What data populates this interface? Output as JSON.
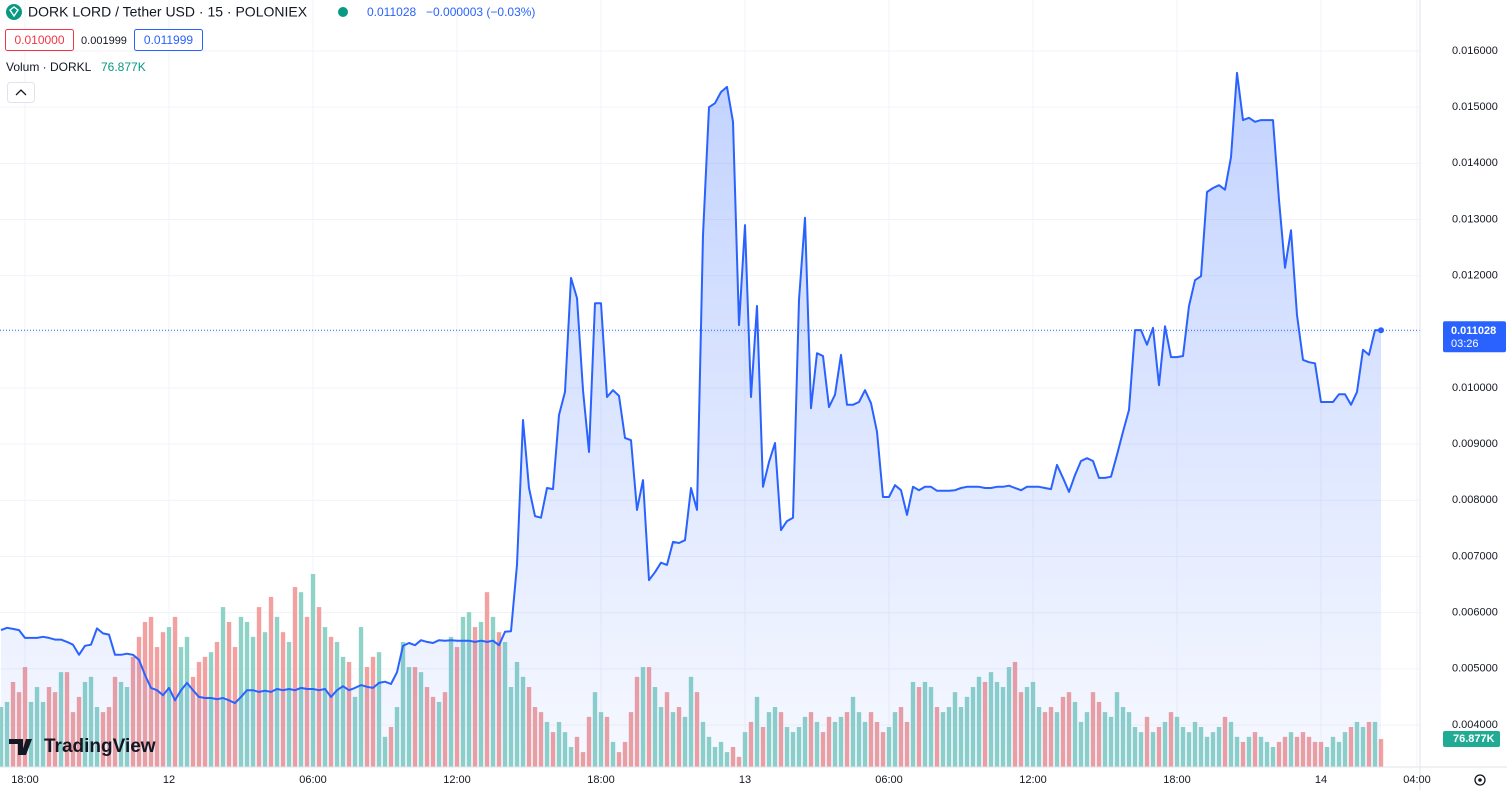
{
  "chart_data": {
    "type": "line",
    "title": "DORK LORD / Tether USD · 15 · POLONIEX",
    "change": "−0.000003 (−0.03%)",
    "price_boxes": [
      "0.010000",
      "0.001999",
      "0.011999"
    ],
    "countdown": "03:26",
    "brand": "TradingView",
    "grid": true,
    "xlim": [
      -0.17,
      236.5
    ],
    "xticks": [
      {
        "value": 4,
        "label": "18:00"
      },
      {
        "value": 28,
        "label": "12"
      },
      {
        "value": 52,
        "label": "06:00"
      },
      {
        "value": 76,
        "label": "12:00"
      },
      {
        "value": 100,
        "label": "18:00"
      },
      {
        "value": 124,
        "label": "13"
      },
      {
        "value": 148,
        "label": "06:00"
      },
      {
        "value": 172,
        "label": "12:00"
      },
      {
        "value": 196,
        "label": "18:00"
      },
      {
        "value": 220,
        "label": "14"
      },
      {
        "value": 236,
        "label": "04:00"
      }
    ],
    "ylim": [
      0.003252,
      0.016908
    ],
    "yticks": [
      {
        "value": 0.016,
        "label": "0.016000"
      },
      {
        "value": 0.015,
        "label": "0.015000"
      },
      {
        "value": 0.014,
        "label": "0.014000"
      },
      {
        "value": 0.013,
        "label": "0.013000"
      },
      {
        "value": 0.012,
        "label": "0.012000"
      },
      {
        "value": 0.011,
        "label": "0.011000"
      },
      {
        "value": 0.01,
        "label": "0.010000"
      },
      {
        "value": 0.009,
        "label": "0.009000"
      },
      {
        "value": 0.008,
        "label": "0.008000"
      },
      {
        "value": 0.007,
        "label": "0.007000"
      },
      {
        "value": 0.006,
        "label": "0.006000"
      },
      {
        "value": 0.005,
        "label": "0.005000"
      },
      {
        "value": 0.004,
        "label": "0.004000"
      }
    ],
    "series": [
      {
        "color": "#2962ff",
        "values": [
          0.00569,
          0.00573,
          0.00571,
          0.00569,
          0.00555,
          0.00555,
          0.00555,
          0.00557,
          0.00555,
          0.00552,
          0.00552,
          0.00548,
          0.00543,
          0.00525,
          0.00541,
          0.00543,
          0.00572,
          0.00563,
          0.00561,
          0.00525,
          0.00525,
          0.00527,
          0.00525,
          0.00516,
          0.00489,
          0.00466,
          0.00462,
          0.00453,
          0.00466,
          0.00444,
          0.00462,
          0.00475,
          0.00462,
          0.0045,
          0.00448,
          0.00448,
          0.00446,
          0.00448,
          0.00444,
          0.00439,
          0.0045,
          0.00462,
          0.00462,
          0.00459,
          0.00461,
          0.00459,
          0.00464,
          0.00462,
          0.00464,
          0.00462,
          0.00466,
          0.00464,
          0.00464,
          0.00462,
          0.00464,
          0.0045,
          0.00462,
          0.00469,
          0.00462,
          0.00466,
          0.00471,
          0.00468,
          0.00466,
          0.00475,
          0.00477,
          0.00473,
          0.00494,
          0.00541,
          0.00546,
          0.00542,
          0.00551,
          0.00548,
          0.00546,
          0.00551,
          0.0055,
          0.00551,
          0.0055,
          0.0055,
          0.0055,
          0.00548,
          0.0055,
          0.00548,
          0.0055,
          0.00542,
          0.00566,
          0.00567,
          0.00685,
          0.00943,
          0.00822,
          0.00772,
          0.00769,
          0.00822,
          0.0082,
          0.00952,
          0.00993,
          0.01196,
          0.0116,
          0.00996,
          0.00886,
          0.01151,
          0.01151,
          0.00984,
          0.00996,
          0.00986,
          0.00911,
          0.00907,
          0.00783,
          0.00836,
          0.00658,
          0.00672,
          0.00689,
          0.00685,
          0.00726,
          0.00724,
          0.00729,
          0.00822,
          0.00783,
          0.01272,
          0.015,
          0.01507,
          0.01527,
          0.01536,
          0.01474,
          0.01112,
          0.0129,
          0.00984,
          0.01146,
          0.00824,
          0.00868,
          0.00902,
          0.00747,
          0.00763,
          0.00769,
          0.01157,
          0.01303,
          0.00964,
          0.01062,
          0.01057,
          0.00966,
          0.00988,
          0.01059,
          0.0097,
          0.0097,
          0.00975,
          0.00996,
          0.00973,
          0.00922,
          0.00806,
          0.00806,
          0.00827,
          0.00818,
          0.00774,
          0.00824,
          0.00818,
          0.00824,
          0.00824,
          0.00817,
          0.00817,
          0.00817,
          0.00818,
          0.00822,
          0.00824,
          0.00824,
          0.00824,
          0.00822,
          0.00822,
          0.00824,
          0.00824,
          0.00826,
          0.00822,
          0.00818,
          0.00824,
          0.00824,
          0.00824,
          0.00822,
          0.0082,
          0.00863,
          0.0084,
          0.00815,
          0.00845,
          0.0087,
          0.00875,
          0.0087,
          0.0084,
          0.0084,
          0.00842,
          0.00881,
          0.00922,
          0.00961,
          0.01103,
          0.01103,
          0.01077,
          0.01107,
          0.01005,
          0.0111,
          0.01055,
          0.01055,
          0.01057,
          0.01146,
          0.01192,
          0.01199,
          0.01349,
          0.01356,
          0.01361,
          0.01353,
          0.01411,
          0.01561,
          0.01477,
          0.01481,
          0.01474,
          0.01477,
          0.01477,
          0.01477,
          0.01335,
          0.01214,
          0.01281,
          0.0113,
          0.0105,
          0.01046,
          0.01044,
          0.00975,
          0.00975,
          0.00975,
          0.00989,
          0.00989,
          0.0097,
          0.00993,
          0.01068,
          0.01059,
          0.01103,
          0.011028
        ]
      },
      {
        "name": "Volum · DORKL",
        "type": "bar",
        "up_color": "#8fd3c8",
        "down_color": "#f2a1a0",
        "last_label": "76.877K",
        "values": [
          165,
          179,
          234,
          206,
          275,
          179,
          220,
          179,
          220,
          206,
          261,
          261,
          151,
          193,
          234,
          248,
          165,
          151,
          165,
          248,
          234,
          220,
          303,
          358,
          399,
          413,
          330,
          371,
          385,
          413,
          330,
          358,
          248,
          289,
          303,
          316,
          344,
          440,
          399,
          330,
          413,
          399,
          358,
          440,
          371,
          468,
          413,
          371,
          344,
          495,
          481,
          413,
          531,
          440,
          385,
          358,
          344,
          303,
          289,
          193,
          385,
          275,
          303,
          316,
          83,
          110,
          165,
          344,
          275,
          275,
          261,
          220,
          193,
          179,
          206,
          358,
          330,
          413,
          426,
          385,
          399,
          481,
          413,
          371,
          344,
          220,
          289,
          248,
          220,
          165,
          151,
          124,
          96,
          124,
          96,
          55,
          83,
          41,
          138,
          206,
          151,
          138,
          69,
          41,
          69,
          151,
          248,
          275,
          275,
          220,
          165,
          206,
          151,
          165,
          138,
          248,
          206,
          124,
          83,
          55,
          69,
          41,
          55,
          28,
          96,
          124,
          193,
          110,
          151,
          165,
          151,
          110,
          96,
          110,
          138,
          151,
          124,
          96,
          138,
          124,
          138,
          151,
          193,
          151,
          124,
          151,
          124,
          96,
          110,
          151,
          165,
          124,
          234,
          220,
          234,
          220,
          165,
          151,
          165,
          206,
          165,
          193,
          220,
          248,
          234,
          261,
          234,
          220,
          275,
          289,
          206,
          220,
          234,
          165,
          151,
          165,
          151,
          193,
          206,
          179,
          124,
          151,
          206,
          179,
          151,
          138,
          206,
          165,
          151,
          110,
          96,
          138,
          96,
          110,
          124,
          151,
          138,
          110,
          96,
          124,
          110,
          83,
          96,
          110,
          138,
          124,
          83,
          69,
          83,
          96,
          83,
          69,
          55,
          69,
          83,
          96,
          83,
          96,
          83,
          69,
          69,
          55,
          83,
          69,
          96,
          110,
          124,
          110,
          124,
          124,
          76.877
        ]
      }
    ]
  }
}
